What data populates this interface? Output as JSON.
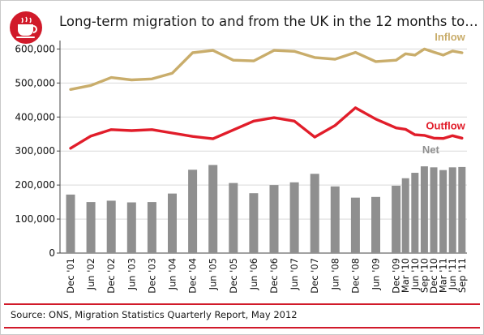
{
  "title": "Long-term migration to and from the UK in the 12 months to…",
  "source": "Source: ONS, Migration Statistics Quarterly Report, May 2012",
  "colors": {
    "brand_red": "#d11a2a",
    "inflow": "#c9ad6b",
    "outflow": "#e11d2a",
    "net": "#8f8f8f",
    "gridline": "#d9d9d9",
    "axis": "#444444"
  },
  "chart_data": {
    "type": "bar+line",
    "title": "Long-term migration to and from the UK in the 12 months to…",
    "xlabel": "",
    "ylabel": "",
    "ylim": [
      0,
      620000
    ],
    "yticks": [
      0,
      100000,
      200000,
      300000,
      400000,
      500000,
      600000
    ],
    "ytick_labels": [
      "0",
      "100,000",
      "200,000",
      "300,000",
      "400,000",
      "500,000",
      "600,000"
    ],
    "grid": "horizontal",
    "categories": [
      "Dec '01",
      "Jun '02",
      "Dec '02",
      "Jun '03",
      "Dec '03",
      "Jun '04",
      "Dec '04",
      "Jun '05",
      "Dec '05",
      "Jun '06",
      "Dec '06",
      "Jun '07",
      "Dec '07",
      "Jun '08",
      "Dec '08",
      "Jun '09",
      "Dec '09",
      "Mar '10",
      "Jun '10",
      "Sep '10",
      "Dec '10",
      "Mar '11",
      "Jun '11",
      "Sep '11"
    ],
    "series": [
      {
        "name": "Inflow",
        "type": "line",
        "label_position": "top-right",
        "values": [
          481000,
          493000,
          516000,
          509000,
          512000,
          529000,
          589000,
          596000,
          567000,
          565000,
          596000,
          593000,
          575000,
          570000,
          590000,
          563000,
          567000,
          586000,
          582000,
          600000,
          591000,
          582000,
          594000,
          589000
        ]
      },
      {
        "name": "Outflow",
        "type": "line",
        "label_position": "right",
        "values": [
          308000,
          344000,
          363000,
          360000,
          363000,
          353000,
          343000,
          336000,
          362000,
          388000,
          398000,
          388000,
          341000,
          375000,
          427000,
          394000,
          368000,
          364000,
          348000,
          346000,
          338000,
          337000,
          345000,
          338000
        ]
      },
      {
        "name": "Net",
        "type": "bar",
        "label_position": "right",
        "values": [
          172000,
          150000,
          154000,
          149000,
          150000,
          175000,
          245000,
          259000,
          206000,
          176000,
          200000,
          208000,
          233000,
          196000,
          163000,
          165000,
          198000,
          220000,
          236000,
          255000,
          252000,
          244000,
          252000,
          253000
        ]
      }
    ]
  }
}
